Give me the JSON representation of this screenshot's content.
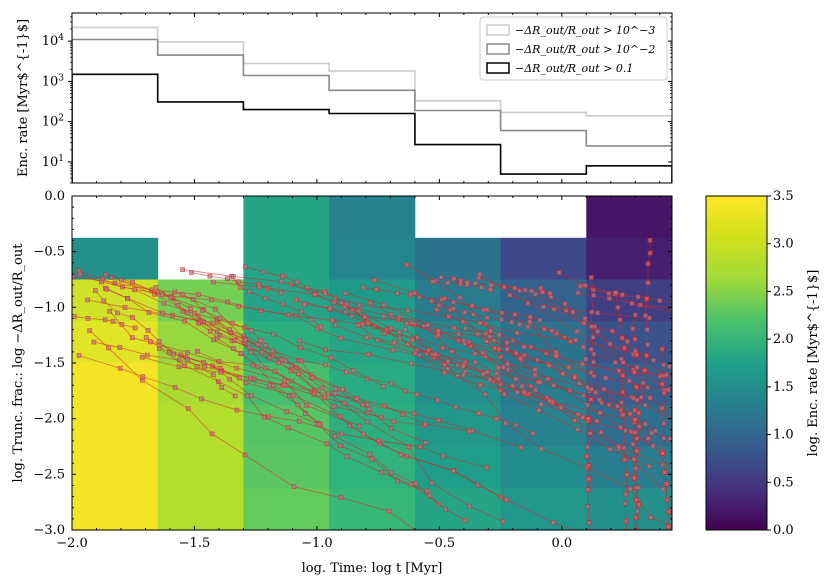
{
  "chart_data": [
    {
      "type": "line",
      "subtype": "step-histogram",
      "ylabel": "Enc. rate [Myr$^{-1}$]",
      "yscale": "log",
      "ylim": [
        3,
        50000
      ],
      "xlim": [
        -2.0,
        0.45
      ],
      "y_tick_labels": [
        "10^1",
        "10^2",
        "10^3",
        "10^4"
      ],
      "y_tick_values": [
        10,
        100,
        1000,
        10000
      ],
      "bin_edges": [
        -2.0,
        -1.65,
        -1.3,
        -0.95,
        -0.6,
        -0.25,
        0.1,
        0.45
      ],
      "legend_position": "top-right",
      "series": [
        {
          "name": "−ΔR_out/R_out > 10^−3",
          "color": "#cccccc",
          "values": [
            22000,
            9500,
            2800,
            1800,
            330,
            170,
            140
          ]
        },
        {
          "name": "−ΔR_out/R_out > 10^−2",
          "color": "#888888",
          "values": [
            11000,
            4500,
            1400,
            600,
            190,
            60,
            25
          ]
        },
        {
          "name": "−ΔR_out/R_out > 0.1",
          "color": "#000000",
          "values": [
            1500,
            310,
            200,
            160,
            27,
            5,
            8
          ]
        }
      ]
    },
    {
      "type": "heatmap",
      "xlabel": "log. Time: log t [Myr]",
      "ylabel": "log. Trunc. frac.: log −ΔR_out/R_out",
      "xlim": [
        -2.0,
        0.45
      ],
      "ylim": [
        -3.0,
        0.0
      ],
      "x_tick_labels": [
        "−2.0",
        "−1.5",
        "−1.0",
        "−0.5",
        "0.0"
      ],
      "x_tick_values": [
        -2.0,
        -1.5,
        -1.0,
        -0.5,
        0.0
      ],
      "y_tick_labels": [
        "0.0",
        "−0.5",
        "−1.0",
        "−1.5",
        "−2.0",
        "−2.5",
        "−3.0"
      ],
      "y_tick_values": [
        0.0,
        -0.5,
        -1.0,
        -1.5,
        -2.0,
        -2.5,
        -3.0
      ],
      "x_edges": [
        -2.0,
        -1.65,
        -1.3,
        -0.95,
        -0.6,
        -0.25,
        0.1,
        0.45
      ],
      "y_edges": [
        0.0,
        -0.375,
        -0.75,
        -1.125,
        -1.5,
        -1.875,
        -2.25,
        -2.625,
        -3.0
      ],
      "values": [
        [
          null,
          null,
          2.05,
          1.55,
          null,
          null,
          0.2
        ],
        [
          1.75,
          null,
          2.05,
          1.6,
          1.35,
          0.75,
          0.3
        ],
        [
          3.25,
          2.75,
          2.05,
          1.9,
          1.45,
          1.1,
          0.65
        ],
        [
          3.35,
          2.95,
          2.2,
          2.05,
          1.65,
          1.35,
          0.9
        ],
        [
          3.45,
          3.05,
          2.45,
          2.15,
          1.75,
          1.45,
          1.05
        ],
        [
          3.45,
          3.1,
          2.55,
          2.2,
          1.85,
          1.55,
          1.25
        ],
        [
          3.45,
          3.1,
          2.6,
          2.25,
          1.95,
          1.7,
          1.5
        ],
        [
          3.45,
          3.1,
          2.65,
          2.35,
          2.05,
          1.85,
          1.75
        ]
      ],
      "trajectory_color": "#d62728",
      "colorbar": {
        "label": "log. Enc. rate [Myr$^{-1}$]",
        "range": [
          0.0,
          3.5
        ],
        "tick_labels": [
          "0.0",
          "0.5",
          "1.0",
          "1.5",
          "2.0",
          "2.5",
          "3.0",
          "3.5"
        ],
        "tick_values": [
          0.0,
          0.5,
          1.0,
          1.5,
          2.0,
          2.5,
          3.0,
          3.5
        ],
        "colormap": "viridis"
      }
    }
  ]
}
